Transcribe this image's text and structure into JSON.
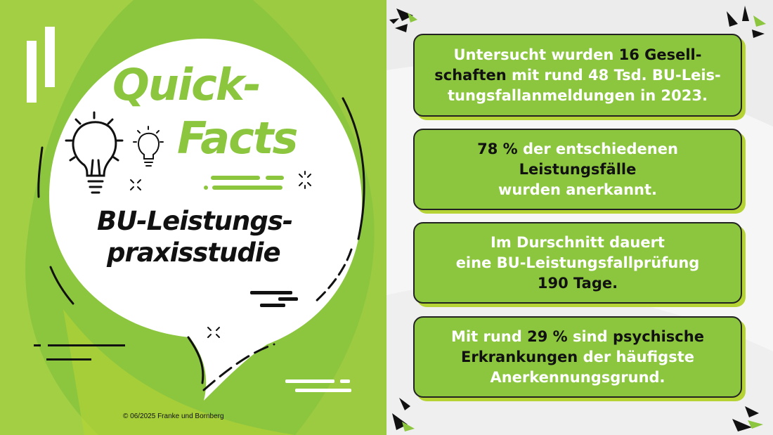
{
  "title": {
    "line1": "Quick-",
    "line2": "Facts",
    "subtitle_line1": "BU-Leistungs-",
    "subtitle_line2": "praxisstudie"
  },
  "copyright": "© 06/2025 Franke und Bornberg",
  "colors": {
    "brand_green": "#8cc63f",
    "accent_yellow_green": "#b5d334",
    "dark": "#111111"
  },
  "facts": [
    {
      "lines": [
        [
          {
            "t": "Untersucht wurden ",
            "dark": false
          },
          {
            "t": "16 Gesell-",
            "dark": true
          }
        ],
        [
          {
            "t": "schaften",
            "dark": true
          },
          {
            "t": " mit rund 48 Tsd. BU-Leis-",
            "dark": false
          }
        ],
        [
          {
            "t": "tungsfallanmeldungen in 2023.",
            "dark": false
          }
        ]
      ]
    },
    {
      "lines": [
        [
          {
            "t": "78 %",
            "dark": true
          },
          {
            "t": " der entschiedenen",
            "dark": false
          }
        ],
        [
          {
            "t": "Leistungsfälle",
            "dark": true
          }
        ],
        [
          {
            "t": "wurden anerkannt.",
            "dark": false
          }
        ]
      ]
    },
    {
      "lines": [
        [
          {
            "t": "Im Durschnitt dauert",
            "dark": false
          }
        ],
        [
          {
            "t": "eine BU-Leistungsfallprüfung",
            "dark": false
          }
        ],
        [
          {
            "t": "190 Tage.",
            "dark": true
          }
        ]
      ]
    },
    {
      "lines": [
        [
          {
            "t": "Mit rund ",
            "dark": false
          },
          {
            "t": "29 %",
            "dark": true
          },
          {
            "t": " sind ",
            "dark": false
          },
          {
            "t": "psychische",
            "dark": true
          }
        ],
        [
          {
            "t": "Erkrankungen",
            "dark": true
          },
          {
            "t": " der häufigste",
            "dark": false
          }
        ],
        [
          {
            "t": "Anerkennungsgrund.",
            "dark": false
          }
        ]
      ]
    }
  ],
  "icons": [
    "lightbulb-icon",
    "small-lightbulb-icon",
    "sparkle-icon",
    "burst-icon"
  ]
}
